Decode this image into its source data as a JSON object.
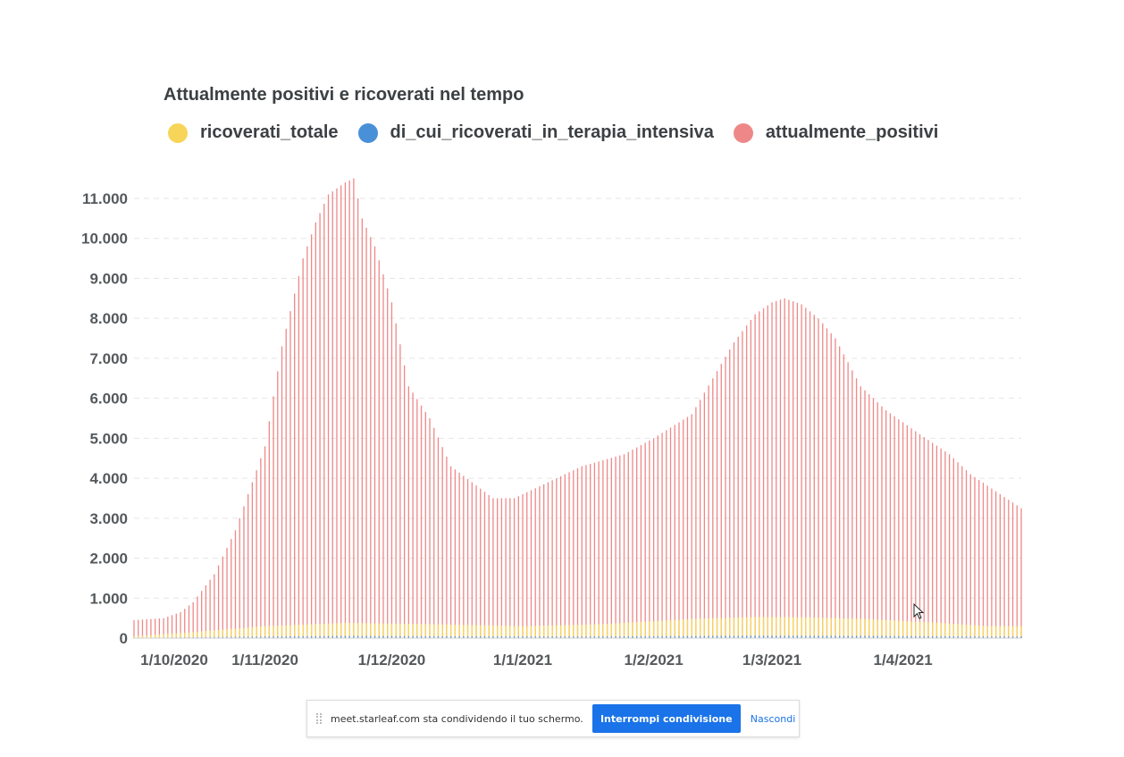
{
  "chart_data": {
    "type": "bar",
    "title": "Attualmente positivi e ricoverati nel tempo",
    "x_tick_labels": [
      "1/10/2020",
      "1/11/2020",
      "1/12/2020",
      "1/1/2021",
      "1/2/2021",
      "1/3/2021",
      "1/4/2021"
    ],
    "y_tick_labels": [
      "0",
      "1.000",
      "2.000",
      "3.000",
      "4.000",
      "5.000",
      "6.000",
      "7.000",
      "8.000",
      "9.000",
      "10.000",
      "11.000"
    ],
    "ylim": [
      0,
      11000
    ],
    "grid": "horizontal dashed",
    "legend": "top",
    "series": [
      {
        "name": "ricoverati_totale",
        "color": "#f7d558",
        "points": [
          [
            "2020-10-01",
            50
          ],
          [
            "2020-10-15",
            150
          ],
          [
            "2020-11-01",
            300
          ],
          [
            "2020-11-20",
            380
          ],
          [
            "2020-12-10",
            350
          ],
          [
            "2021-01-01",
            300
          ],
          [
            "2021-01-20",
            350
          ],
          [
            "2021-02-10",
            480
          ],
          [
            "2021-02-25",
            530
          ],
          [
            "2021-03-10",
            520
          ],
          [
            "2021-03-25",
            470
          ],
          [
            "2021-04-10",
            380
          ],
          [
            "2021-04-21",
            300
          ]
        ]
      },
      {
        "name": "di_cui_ricoverati_in_terapia_intensiva",
        "color": "#4a90d9",
        "points": [
          [
            "2020-10-01",
            5
          ],
          [
            "2020-11-01",
            40
          ],
          [
            "2020-11-20",
            55
          ],
          [
            "2020-12-15",
            45
          ],
          [
            "2021-01-15",
            40
          ],
          [
            "2021-02-25",
            60
          ],
          [
            "2021-03-25",
            55
          ],
          [
            "2021-04-21",
            40
          ]
        ]
      },
      {
        "name": "attualmente_positivi",
        "color": "#ee8888",
        "points": [
          [
            "2020-10-01",
            450
          ],
          [
            "2020-10-08",
            500
          ],
          [
            "2020-10-12",
            650
          ],
          [
            "2020-10-15",
            900
          ],
          [
            "2020-10-20",
            1600
          ],
          [
            "2020-10-25",
            2700
          ],
          [
            "2020-10-30",
            4200
          ],
          [
            "2020-11-01",
            4800
          ],
          [
            "2020-11-05",
            7300
          ],
          [
            "2020-11-10",
            9500
          ],
          [
            "2020-11-13",
            10400
          ],
          [
            "2020-11-16",
            11100
          ],
          [
            "2020-11-20",
            11400
          ],
          [
            "2020-11-22",
            11500
          ],
          [
            "2020-11-24",
            10500
          ],
          [
            "2020-11-27",
            9800
          ],
          [
            "2020-12-01",
            8400
          ],
          [
            "2020-12-05",
            6300
          ],
          [
            "2020-12-10",
            5500
          ],
          [
            "2020-12-15",
            4300
          ],
          [
            "2020-12-20",
            3900
          ],
          [
            "2020-12-25",
            3500
          ],
          [
            "2020-12-30",
            3500
          ],
          [
            "2021-01-05",
            3800
          ],
          [
            "2021-01-15",
            4300
          ],
          [
            "2021-01-25",
            4600
          ],
          [
            "2021-02-01",
            5000
          ],
          [
            "2021-02-10",
            5600
          ],
          [
            "2021-02-15",
            6500
          ],
          [
            "2021-02-20",
            7400
          ],
          [
            "2021-02-25",
            8100
          ],
          [
            "2021-03-01",
            8400
          ],
          [
            "2021-03-04",
            8500
          ],
          [
            "2021-03-08",
            8350
          ],
          [
            "2021-03-12",
            8000
          ],
          [
            "2021-03-16",
            7500
          ],
          [
            "2021-03-22",
            6300
          ],
          [
            "2021-03-28",
            5700
          ],
          [
            "2021-04-05",
            5100
          ],
          [
            "2021-04-12",
            4600
          ],
          [
            "2021-04-17",
            4100
          ],
          [
            "2021-04-24",
            3600
          ],
          [
            "2021-04-29",
            3250
          ]
        ]
      }
    ]
  },
  "legend": {
    "items": [
      {
        "label": "ricoverati_totale",
        "color": "#f7d558"
      },
      {
        "label": "di_cui_ricoverati_in_terapia_intensiva",
        "color": "#4a90d9"
      },
      {
        "label": "attualmente_positivi",
        "color": "#ee8888"
      }
    ]
  },
  "share_bar": {
    "message": "meet.starleaf.com sta condividendo il tuo schermo.",
    "stop_label": "Interrompi condivisione",
    "hide_label": "Nascondi"
  }
}
